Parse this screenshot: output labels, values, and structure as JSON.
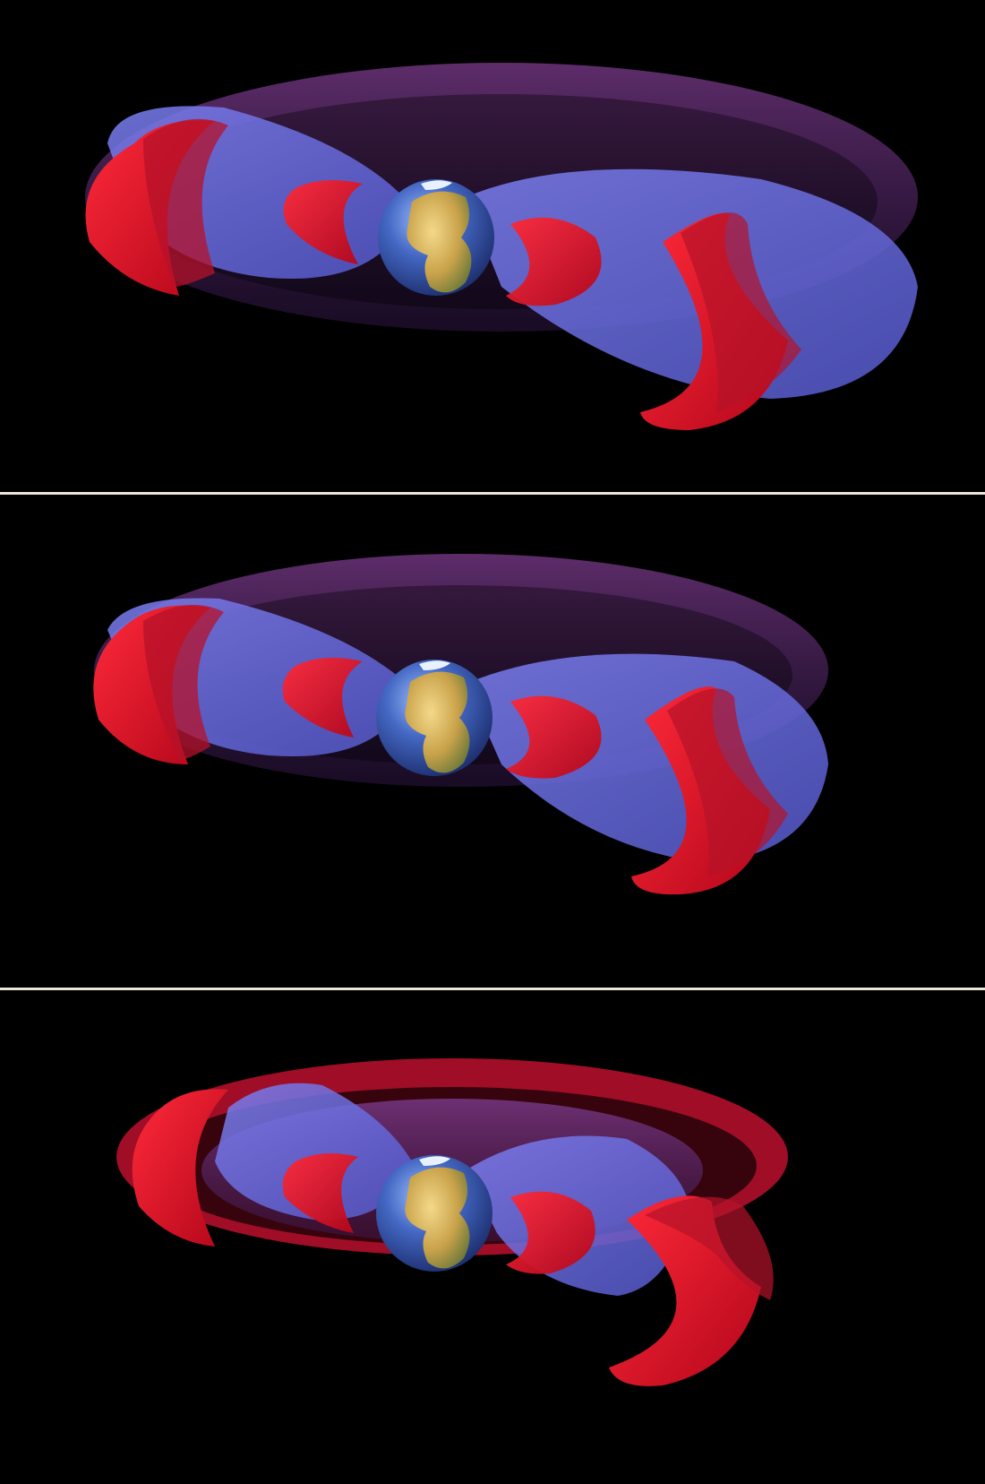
{
  "figure": {
    "panels": [
      {
        "state": "belts-before",
        "outer_belt_layers": 2
      },
      {
        "state": "belts-compressed",
        "outer_belt_layers": 2
      },
      {
        "state": "belts-with-third-ring",
        "outer_belt_layers": 1
      }
    ]
  },
  "colors": {
    "background": "#000000",
    "divider": "#efe6d2",
    "belt_red": "#e0142a",
    "belt_blue": "#6a6fe0",
    "ocean_blue": "#3a5fb8",
    "land_tan": "#c9a24a"
  },
  "icons": {
    "planet": "earth-globe-icon"
  }
}
